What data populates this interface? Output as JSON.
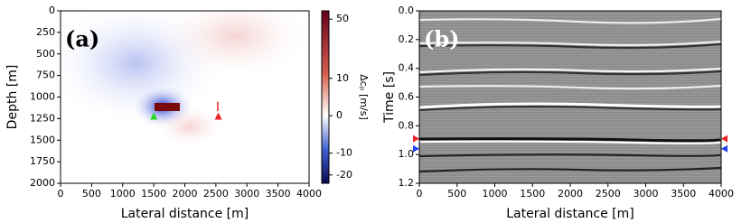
{
  "chart_data": [
    {
      "type": "image",
      "annotation": "(a)",
      "xlabel": "Lateral distance [m]",
      "ylabel": "Depth [m]",
      "xlim": [
        0,
        4000
      ],
      "ylim": [
        2000,
        0
      ],
      "xticks": [
        0,
        500,
        1000,
        1500,
        2000,
        2500,
        3000,
        3500,
        4000
      ],
      "yticks": [
        0,
        250,
        500,
        750,
        1000,
        1250,
        1500,
        1750,
        2000
      ],
      "markers": [
        {
          "x": 1500,
          "y": 1230,
          "color": "#22dd22"
        },
        {
          "x": 2540,
          "y": 1230,
          "color": "#ee2222"
        }
      ],
      "colorbar": {
        "label": "Δcₚ [m/s]",
        "clim": [
          -25,
          60
        ],
        "scale": "symlog",
        "linthresh": 10,
        "ticks": [
          50,
          10,
          0,
          -10,
          -20
        ]
      }
    },
    {
      "type": "seismogram",
      "annotation": "(b)",
      "xlabel": "Lateral distance [m]",
      "ylabel": "Time [s]",
      "xlim": [
        0,
        4000
      ],
      "ylim": [
        1.2,
        0
      ],
      "xticks": [
        0,
        500,
        1000,
        1500,
        2000,
        2500,
        3000,
        3500,
        4000
      ],
      "yticks": [
        {
          "value": 0,
          "label": "0.0"
        },
        0.2,
        0.4,
        0.6,
        0.8,
        {
          "value": 1,
          "label": "1.0"
        },
        1.2
      ],
      "markers": [
        {
          "x": 0,
          "y": 0.89,
          "color": "#ee2222",
          "side": "both"
        },
        {
          "x": 0,
          "y": 0.96,
          "color": "#2244ee",
          "side": "both"
        }
      ]
    }
  ]
}
